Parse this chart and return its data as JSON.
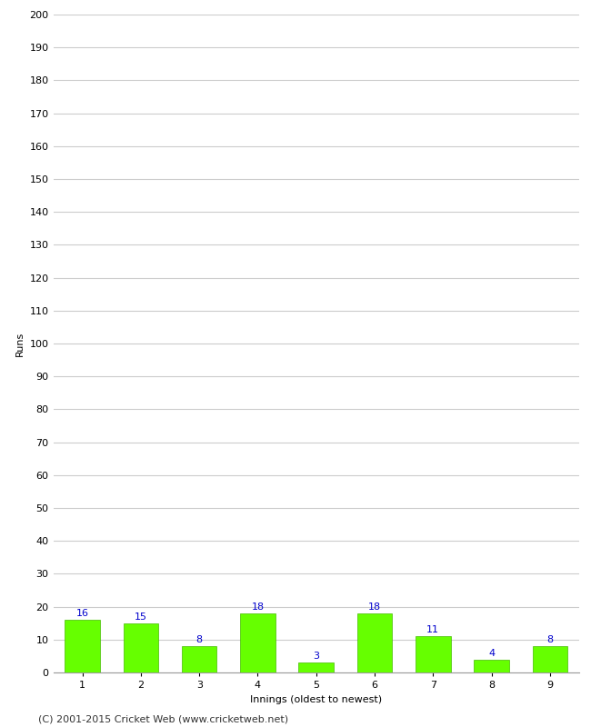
{
  "innings": [
    1,
    2,
    3,
    4,
    5,
    6,
    7,
    8,
    9
  ],
  "runs": [
    16,
    15,
    8,
    18,
    3,
    18,
    11,
    4,
    8
  ],
  "bar_color": "#66ff00",
  "bar_edge_color": "#44bb00",
  "label_color": "#0000cc",
  "xlabel": "Innings (oldest to newest)",
  "ylabel": "Runs",
  "ylim": [
    0,
    200
  ],
  "ytick_step": 10,
  "grid_color": "#cccccc",
  "bg_color": "#ffffff",
  "footer": "(C) 2001-2015 Cricket Web (www.cricketweb.net)",
  "label_fontsize": 8,
  "axis_label_fontsize": 8,
  "tick_fontsize": 8,
  "footer_fontsize": 8
}
